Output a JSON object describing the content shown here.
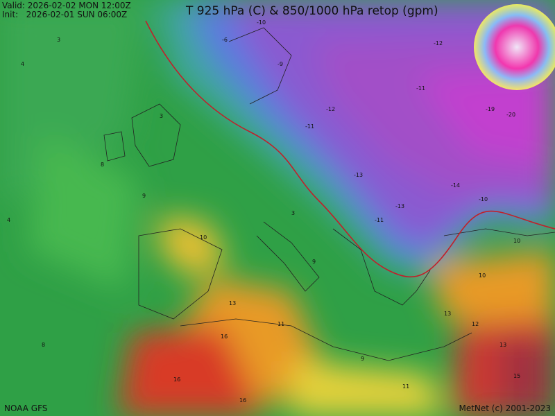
{
  "header": {
    "valid": "Valid: 2026-02-02 MON 12:00Z",
    "init": "Init:   2026-02-01 SUN 06:00Z",
    "title": "T 925 hPa (C) & 850/1000 hPa retop (gpm)"
  },
  "footer": {
    "source": "NOAA GFS",
    "credit": "MetNet (c) 2001-2023"
  },
  "labels": [
    3,
    4,
    8,
    9,
    8,
    4,
    10,
    13,
    16,
    16,
    16,
    3,
    -6,
    -10,
    -9,
    -11,
    -12,
    -11,
    -12,
    -19,
    -20,
    -14,
    -10,
    -13,
    -11,
    -13,
    3,
    9,
    11,
    9,
    11,
    10,
    10,
    13,
    15,
    12,
    13
  ]
}
